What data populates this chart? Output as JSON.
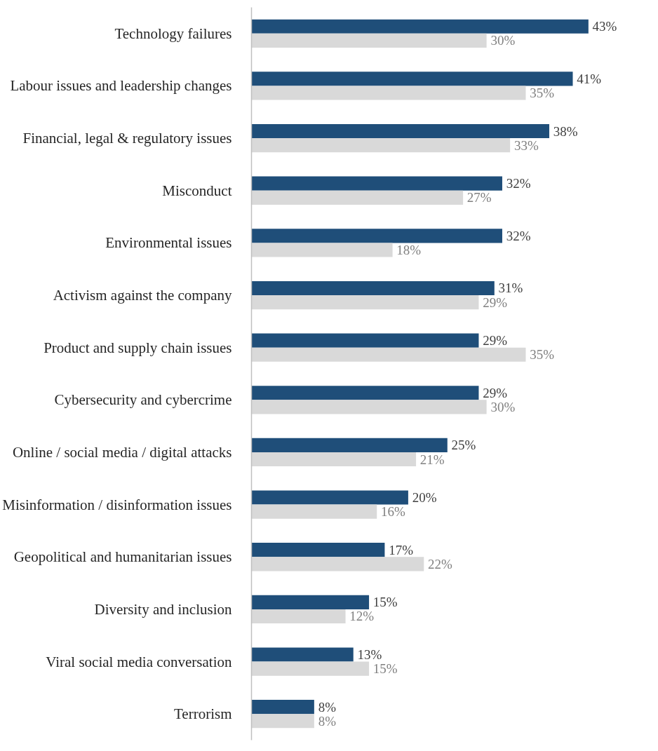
{
  "chart_data": {
    "type": "bar",
    "orientation": "horizontal",
    "grid": false,
    "tick_labels": "y",
    "categories": [
      "Technology failures",
      "Labour issues and leadership changes",
      "Financial, legal & regulatory issues",
      "Misconduct",
      "Environmental issues",
      "Activism against the company",
      "Product and supply chain issues",
      "Cybersecurity and cybercrime",
      "Online / social media / digital attacks",
      "Misinformation / disinformation issues",
      "Geopolitical and humanitarian issues",
      "Diversity and inclusion",
      "Viral social media conversation",
      "Terrorism"
    ],
    "series": [
      {
        "color": "#1f4e79",
        "values": [
          43,
          41,
          38,
          32,
          32,
          31,
          29,
          29,
          25,
          20,
          17,
          15,
          13,
          8
        ],
        "value_labels": [
          "43%",
          "41%",
          "38%",
          "32%",
          "32%",
          "31%",
          "29%",
          "29%",
          "25%",
          "20%",
          "17%",
          "15%",
          "13%",
          "8%"
        ]
      },
      {
        "color": "#d9d9d9",
        "values": [
          30,
          35,
          33,
          27,
          18,
          29,
          35,
          30,
          21,
          16,
          22,
          12,
          15,
          8
        ],
        "value_labels": [
          "30%",
          "35%",
          "33%",
          "27%",
          "18%",
          "29%",
          "35%",
          "30%",
          "21%",
          "16%",
          "22%",
          "12%",
          "15%",
          "8%"
        ]
      }
    ]
  }
}
